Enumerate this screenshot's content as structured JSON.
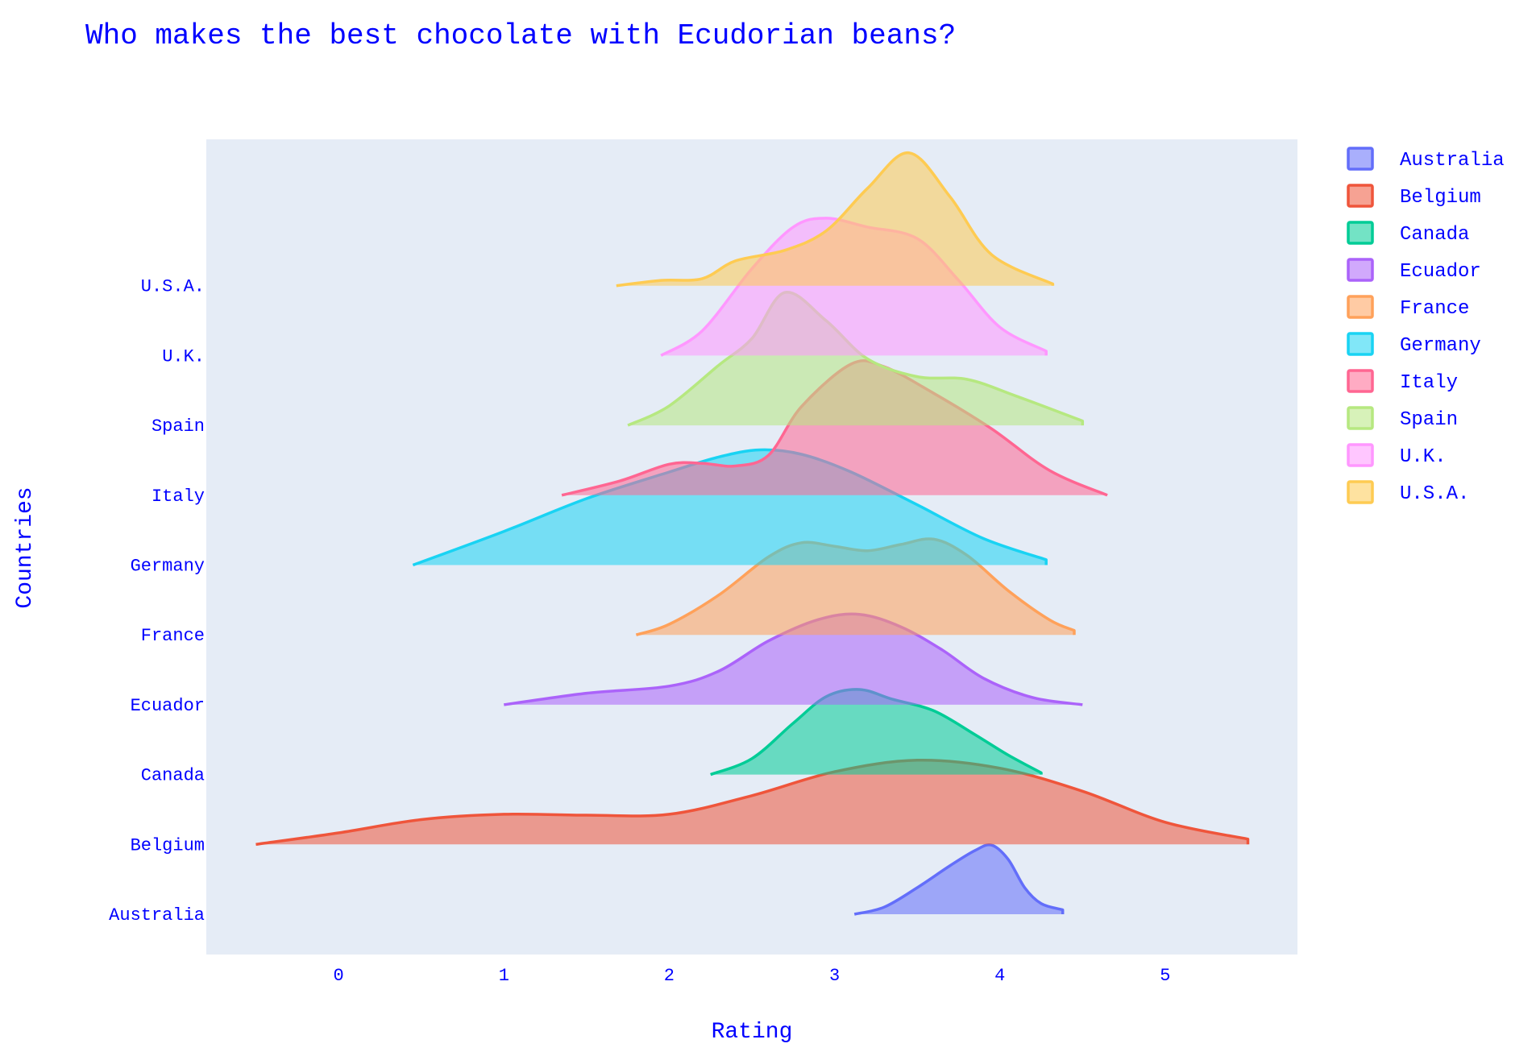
{
  "chart_data": {
    "type": "ridgeline",
    "title": "Who makes the best chocolate with Ecudorian beans?",
    "xlabel": "Rating",
    "ylabel": "Countries",
    "xlim": [
      -0.8,
      5.8
    ],
    "xticks": [
      0,
      1,
      2,
      3,
      4,
      5
    ],
    "grid": false,
    "legend_position": "right",
    "text_color": "#0000ff",
    "plot_bg": "#e5ecf6",
    "series": [
      {
        "name": "Australia",
        "color": "#636efa",
        "fill": "rgba(99,110,250,0.55)",
        "points": [
          [
            3.12,
            0
          ],
          [
            3.3,
            0.08
          ],
          [
            3.5,
            0.3
          ],
          [
            3.7,
            0.55
          ],
          [
            3.85,
            0.72
          ],
          [
            3.95,
            0.78
          ],
          [
            4.05,
            0.62
          ],
          [
            4.15,
            0.3
          ],
          [
            4.25,
            0.12
          ],
          [
            4.38,
            0.05
          ]
        ]
      },
      {
        "name": "Belgium",
        "color": "#ef553b",
        "fill": "rgba(239,85,59,0.55)",
        "points": [
          [
            -0.5,
            0
          ],
          [
            0,
            0.13
          ],
          [
            0.5,
            0.28
          ],
          [
            1,
            0.34
          ],
          [
            1.5,
            0.33
          ],
          [
            2,
            0.34
          ],
          [
            2.5,
            0.55
          ],
          [
            3,
            0.82
          ],
          [
            3.5,
            0.95
          ],
          [
            4,
            0.86
          ],
          [
            4.5,
            0.6
          ],
          [
            5,
            0.25
          ],
          [
            5.5,
            0.06
          ]
        ]
      },
      {
        "name": "Canada",
        "color": "#00cc96",
        "fill": "rgba(0,204,150,0.55)",
        "points": [
          [
            2.25,
            0
          ],
          [
            2.5,
            0.18
          ],
          [
            2.75,
            0.58
          ],
          [
            2.95,
            0.88
          ],
          [
            3.15,
            0.96
          ],
          [
            3.35,
            0.85
          ],
          [
            3.6,
            0.72
          ],
          [
            3.85,
            0.45
          ],
          [
            4.05,
            0.22
          ],
          [
            4.25,
            0.02
          ]
        ]
      },
      {
        "name": "Ecuador",
        "color": "#ab63fa",
        "fill": "rgba(171,99,250,0.55)",
        "points": [
          [
            1,
            0
          ],
          [
            1.5,
            0.13
          ],
          [
            2,
            0.21
          ],
          [
            2.3,
            0.38
          ],
          [
            2.6,
            0.72
          ],
          [
            2.9,
            0.96
          ],
          [
            3.15,
            1.02
          ],
          [
            3.4,
            0.88
          ],
          [
            3.65,
            0.62
          ],
          [
            3.9,
            0.3
          ],
          [
            4.2,
            0.08
          ],
          [
            4.5,
            0
          ]
        ]
      },
      {
        "name": "France",
        "color": "#ffa15a",
        "fill": "rgba(255,161,90,0.55)",
        "points": [
          [
            1.8,
            0
          ],
          [
            2,
            0.12
          ],
          [
            2.3,
            0.45
          ],
          [
            2.6,
            0.88
          ],
          [
            2.8,
            1.04
          ],
          [
            3,
            1.0
          ],
          [
            3.2,
            0.95
          ],
          [
            3.4,
            1.02
          ],
          [
            3.6,
            1.08
          ],
          [
            3.8,
            0.9
          ],
          [
            4.05,
            0.5
          ],
          [
            4.3,
            0.17
          ],
          [
            4.45,
            0.05
          ]
        ]
      },
      {
        "name": "Germany",
        "color": "#19d3f3",
        "fill": "rgba(25,211,243,0.55)",
        "points": [
          [
            0.45,
            0
          ],
          [
            1,
            0.38
          ],
          [
            1.5,
            0.75
          ],
          [
            2,
            1.05
          ],
          [
            2.3,
            1.22
          ],
          [
            2.55,
            1.3
          ],
          [
            2.8,
            1.25
          ],
          [
            3.1,
            1.05
          ],
          [
            3.5,
            0.68
          ],
          [
            3.9,
            0.3
          ],
          [
            4.28,
            0.06
          ]
        ]
      },
      {
        "name": "Italy",
        "color": "#ff6692",
        "fill": "rgba(255,102,146,0.55)",
        "points": [
          [
            1.35,
            0
          ],
          [
            1.7,
            0.16
          ],
          [
            2,
            0.35
          ],
          [
            2.2,
            0.36
          ],
          [
            2.4,
            0.33
          ],
          [
            2.6,
            0.45
          ],
          [
            2.8,
            1.0
          ],
          [
            3.1,
            1.48
          ],
          [
            3.3,
            1.45
          ],
          [
            3.6,
            1.15
          ],
          [
            3.95,
            0.75
          ],
          [
            4.3,
            0.28
          ],
          [
            4.65,
            0
          ]
        ]
      },
      {
        "name": "Spain",
        "color": "#b6e880",
        "fill": "rgba(182,232,128,0.55)",
        "points": [
          [
            1.75,
            0
          ],
          [
            2,
            0.22
          ],
          [
            2.3,
            0.68
          ],
          [
            2.5,
            0.98
          ],
          [
            2.7,
            1.5
          ],
          [
            2.95,
            1.18
          ],
          [
            3.2,
            0.75
          ],
          [
            3.5,
            0.55
          ],
          [
            3.8,
            0.52
          ],
          [
            4.1,
            0.33
          ],
          [
            4.5,
            0.05
          ]
        ]
      },
      {
        "name": "U.K.",
        "color": "#ff97ff",
        "fill": "rgba(255,151,255,0.55)",
        "points": [
          [
            1.95,
            0
          ],
          [
            2.2,
            0.28
          ],
          [
            2.5,
            0.98
          ],
          [
            2.75,
            1.45
          ],
          [
            2.95,
            1.55
          ],
          [
            3.2,
            1.45
          ],
          [
            3.5,
            1.32
          ],
          [
            3.75,
            0.85
          ],
          [
            4.0,
            0.32
          ],
          [
            4.28,
            0.05
          ]
        ]
      },
      {
        "name": "U.S.A.",
        "color": "#fecb52",
        "fill": "rgba(254,203,82,0.55)",
        "points": [
          [
            1.68,
            0
          ],
          [
            1.95,
            0.06
          ],
          [
            2.2,
            0.08
          ],
          [
            2.4,
            0.28
          ],
          [
            2.7,
            0.4
          ],
          [
            2.95,
            0.62
          ],
          [
            3.2,
            1.1
          ],
          [
            3.45,
            1.5
          ],
          [
            3.7,
            1.0
          ],
          [
            3.95,
            0.35
          ],
          [
            4.32,
            0.02
          ]
        ]
      }
    ]
  }
}
